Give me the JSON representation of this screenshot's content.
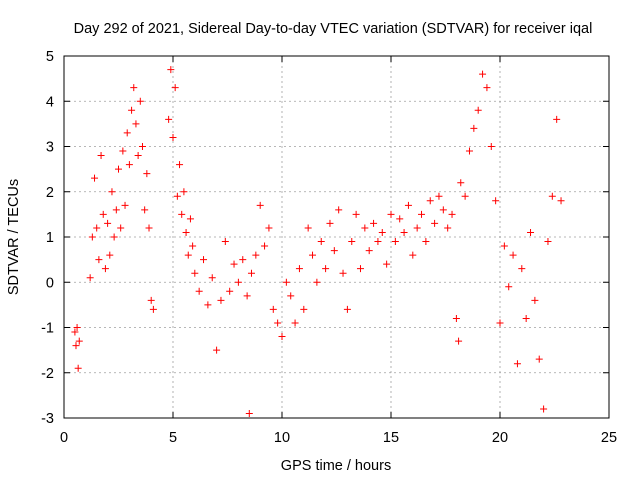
{
  "chart_data": {
    "type": "scatter",
    "title": "Day 292 of 2021, Sidereal Day-to-day VTEC variation (SDTVAR) for receiver iqal",
    "xlabel": "GPS time / hours",
    "ylabel": "SDTVAR / TECUs",
    "xlim": [
      0,
      25
    ],
    "ylim": [
      -3,
      5
    ],
    "xticks": [
      "0",
      "5",
      "10",
      "15",
      "20",
      "25"
    ],
    "yticks": [
      "-3",
      "-2",
      "-1",
      "0",
      "1",
      "2",
      "3",
      "4",
      "5"
    ],
    "grid": true,
    "marker": "+",
    "color": "#ff0000",
    "series": [
      {
        "name": "SDTVAR",
        "x": [
          0.5,
          0.55,
          0.6,
          0.65,
          0.7,
          1.2,
          1.3,
          1.4,
          1.5,
          1.6,
          1.7,
          1.8,
          1.9,
          2.0,
          2.1,
          2.2,
          2.3,
          2.4,
          2.5,
          2.6,
          2.7,
          2.8,
          2.9,
          3.0,
          3.1,
          3.2,
          3.3,
          3.4,
          3.5,
          3.6,
          3.7,
          3.8,
          3.9,
          4.0,
          4.1,
          4.8,
          4.9,
          5.0,
          5.1,
          5.2,
          5.3,
          5.4,
          5.5,
          5.6,
          5.7,
          5.8,
          5.9,
          6.0,
          6.2,
          6.4,
          6.6,
          6.8,
          7.0,
          7.2,
          7.4,
          7.6,
          7.8,
          8.0,
          8.2,
          8.4,
          8.5,
          8.6,
          8.8,
          9.0,
          9.2,
          9.4,
          9.6,
          9.8,
          10.0,
          10.2,
          10.4,
          10.6,
          10.8,
          11.0,
          11.2,
          11.4,
          11.6,
          11.8,
          12.0,
          12.2,
          12.4,
          12.6,
          12.8,
          13.0,
          13.2,
          13.4,
          13.6,
          13.8,
          14.0,
          14.2,
          14.4,
          14.6,
          14.8,
          15.0,
          15.2,
          15.4,
          15.6,
          15.8,
          16.0,
          16.2,
          16.4,
          16.6,
          16.8,
          17.0,
          17.2,
          17.4,
          17.6,
          17.8,
          18.0,
          18.1,
          18.2,
          18.4,
          18.6,
          18.8,
          19.0,
          19.2,
          19.4,
          19.6,
          19.8,
          20.0,
          20.2,
          20.4,
          20.6,
          20.8,
          21.0,
          21.2,
          21.4,
          21.6,
          21.8,
          22.0,
          22.2,
          22.4,
          22.6,
          22.8
        ],
        "y": [
          -1.1,
          -1.4,
          -1.0,
          -1.9,
          -1.3,
          0.1,
          1.0,
          2.3,
          1.2,
          0.5,
          2.8,
          1.5,
          0.3,
          1.3,
          0.6,
          2.0,
          1.0,
          1.6,
          2.5,
          1.2,
          2.9,
          1.7,
          3.3,
          2.6,
          3.8,
          4.3,
          3.5,
          2.8,
          4.0,
          3.0,
          1.6,
          2.4,
          1.2,
          -0.4,
          -0.6,
          3.6,
          4.7,
          3.2,
          4.3,
          1.9,
          2.6,
          1.5,
          2.0,
          1.1,
          0.6,
          1.4,
          0.8,
          0.2,
          -0.2,
          0.5,
          -0.5,
          0.1,
          -1.5,
          -0.4,
          0.9,
          -0.2,
          0.4,
          0.0,
          0.5,
          -0.3,
          -2.9,
          0.2,
          0.6,
          1.7,
          0.8,
          1.2,
          -0.6,
          -0.9,
          -1.2,
          0.0,
          -0.3,
          -0.9,
          0.3,
          -0.6,
          1.2,
          0.6,
          0.0,
          0.9,
          0.3,
          1.3,
          0.7,
          1.6,
          0.2,
          -0.6,
          0.9,
          1.5,
          0.3,
          1.2,
          0.7,
          1.3,
          0.9,
          1.1,
          0.4,
          1.5,
          0.9,
          1.4,
          1.1,
          1.7,
          0.6,
          1.2,
          1.5,
          0.9,
          1.8,
          1.3,
          1.9,
          1.6,
          1.2,
          1.5,
          -0.8,
          -1.3,
          2.2,
          1.9,
          2.9,
          3.4,
          3.8,
          4.6,
          4.3,
          3.0,
          1.8,
          -0.9,
          0.8,
          -0.1,
          0.6,
          -1.8,
          0.3,
          -0.8,
          1.1,
          -0.4,
          -1.7,
          -2.8,
          0.9,
          1.9,
          3.6,
          1.8
        ]
      }
    ]
  }
}
